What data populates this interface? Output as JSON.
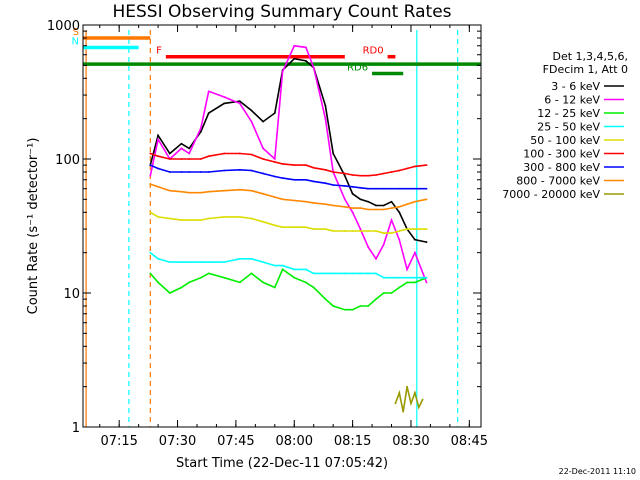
{
  "chart_data": {
    "type": "line",
    "title": "HESSI Observing Summary Count Rates",
    "xlabel": "Start Time (22-Dec-11 07:05:42)",
    "ylabel": "Count Rate (s⁻¹ detector⁻¹)",
    "xscale": "time",
    "yscale": "log",
    "xlim": [
      "07:05:42",
      "08:48:00"
    ],
    "ylim": [
      1,
      1000
    ],
    "x_ticks": [
      "07:15",
      "07:30",
      "07:45",
      "08:00",
      "08:15",
      "08:30",
      "08:45"
    ],
    "y_ticks": [
      "1",
      "10",
      "100",
      "1000"
    ],
    "legend_header": [
      "Det 1,3,4,5,6,",
      "FDecim 1, Att 0"
    ],
    "legend_position": "right, outside plot",
    "series": [
      {
        "name": "3 - 6 keV",
        "color": "#000000",
        "x": [
          "07:23",
          "07:25",
          "07:28",
          "07:31",
          "07:33",
          "07:36",
          "07:38",
          "07:42",
          "07:46",
          "07:49",
          "07:52",
          "07:55",
          "07:57",
          "08:00",
          "08:03",
          "08:05",
          "08:08",
          "08:10",
          "08:13",
          "08:15",
          "08:17",
          "08:19",
          "08:21",
          "08:23",
          "08:25",
          "08:27",
          "08:29",
          "08:31",
          "08:34"
        ],
        "y": [
          90,
          150,
          110,
          130,
          120,
          160,
          220,
          260,
          270,
          230,
          190,
          220,
          460,
          560,
          540,
          480,
          250,
          110,
          75,
          55,
          50,
          48,
          45,
          45,
          48,
          40,
          30,
          25,
          24
        ]
      },
      {
        "name": "6 - 12 keV",
        "color": "#ff00ff",
        "x": [
          "07:23",
          "07:25",
          "07:28",
          "07:31",
          "07:33",
          "07:36",
          "07:38",
          "07:42",
          "07:46",
          "07:49",
          "07:52",
          "07:55",
          "07:57",
          "08:00",
          "08:03",
          "08:05",
          "08:08",
          "08:10",
          "08:13",
          "08:15",
          "08:17",
          "08:19",
          "08:21",
          "08:23",
          "08:25",
          "08:27",
          "08:29",
          "08:31",
          "08:34"
        ],
        "y": [
          75,
          140,
          100,
          120,
          110,
          170,
          320,
          290,
          260,
          190,
          120,
          100,
          450,
          700,
          680,
          480,
          200,
          80,
          50,
          40,
          30,
          22,
          18,
          23,
          35,
          25,
          15,
          20,
          12
        ]
      },
      {
        "name": "12 - 25 keV",
        "color": "#00ee00",
        "x": [
          "07:23",
          "07:25",
          "07:28",
          "07:31",
          "07:33",
          "07:36",
          "07:38",
          "07:42",
          "07:46",
          "07:49",
          "07:52",
          "07:55",
          "07:57",
          "08:00",
          "08:03",
          "08:05",
          "08:08",
          "08:10",
          "08:13",
          "08:15",
          "08:17",
          "08:19",
          "08:21",
          "08:23",
          "08:25",
          "08:27",
          "08:29",
          "08:31",
          "08:34"
        ],
        "y": [
          14,
          12,
          10,
          11,
          12,
          13,
          14,
          13,
          12,
          14,
          12,
          11,
          15,
          13,
          12,
          11,
          9,
          8,
          7.5,
          7.5,
          8,
          8,
          9,
          10,
          10,
          11,
          12,
          12,
          13
        ]
      },
      {
        "name": "25 - 50 keV",
        "color": "#00ffff",
        "x": [
          "07:23",
          "07:25",
          "07:28",
          "07:31",
          "07:33",
          "07:36",
          "07:38",
          "07:42",
          "07:46",
          "07:49",
          "07:52",
          "07:55",
          "07:57",
          "08:00",
          "08:03",
          "08:05",
          "08:08",
          "08:10",
          "08:13",
          "08:15",
          "08:17",
          "08:19",
          "08:21",
          "08:23",
          "08:25",
          "08:27",
          "08:29",
          "08:31",
          "08:34"
        ],
        "y": [
          20,
          18,
          17,
          17,
          17,
          17,
          17,
          17,
          18,
          18,
          17,
          16,
          16,
          15,
          15,
          14,
          14,
          14,
          14,
          14,
          14,
          14,
          14,
          13,
          13,
          13,
          13,
          13,
          13
        ]
      },
      {
        "name": "50 - 100 keV",
        "color": "#dddd00",
        "x": [
          "07:23",
          "07:25",
          "07:28",
          "07:31",
          "07:33",
          "07:36",
          "07:38",
          "07:42",
          "07:46",
          "07:49",
          "07:52",
          "07:55",
          "07:57",
          "08:00",
          "08:03",
          "08:05",
          "08:08",
          "08:10",
          "08:13",
          "08:15",
          "08:17",
          "08:19",
          "08:21",
          "08:23",
          "08:25",
          "08:27",
          "08:29",
          "08:31",
          "08:34"
        ],
        "y": [
          40,
          37,
          36,
          35,
          35,
          35,
          36,
          37,
          37,
          36,
          34,
          32,
          31,
          31,
          31,
          30,
          30,
          29,
          29,
          29,
          29,
          29,
          29,
          28,
          28,
          29,
          30,
          30,
          30
        ]
      },
      {
        "name": "100 - 300 keV",
        "color": "#ff0000",
        "x": [
          "07:23",
          "07:25",
          "07:28",
          "07:31",
          "07:33",
          "07:36",
          "07:38",
          "07:42",
          "07:46",
          "07:49",
          "07:52",
          "07:55",
          "07:57",
          "08:00",
          "08:03",
          "08:05",
          "08:08",
          "08:10",
          "08:13",
          "08:15",
          "08:17",
          "08:19",
          "08:21",
          "08:23",
          "08:25",
          "08:27",
          "08:29",
          "08:31",
          "08:34"
        ],
        "y": [
          110,
          105,
          100,
          100,
          100,
          100,
          105,
          110,
          110,
          108,
          100,
          95,
          92,
          90,
          90,
          86,
          83,
          80,
          78,
          76,
          75,
          75,
          76,
          78,
          80,
          82,
          85,
          88,
          90
        ]
      },
      {
        "name": "300 - 800 keV",
        "color": "#0000ff",
        "x": [
          "07:23",
          "07:25",
          "07:28",
          "07:31",
          "07:33",
          "07:36",
          "07:38",
          "07:42",
          "07:46",
          "07:49",
          "07:52",
          "07:55",
          "07:57",
          "08:00",
          "08:03",
          "08:05",
          "08:08",
          "08:10",
          "08:13",
          "08:15",
          "08:17",
          "08:19",
          "08:21",
          "08:23",
          "08:25",
          "08:27",
          "08:29",
          "08:31",
          "08:34"
        ],
        "y": [
          90,
          85,
          80,
          80,
          80,
          80,
          80,
          82,
          83,
          82,
          78,
          74,
          72,
          70,
          70,
          68,
          66,
          64,
          63,
          62,
          61,
          60,
          60,
          60,
          60,
          60,
          60,
          60,
          60
        ]
      },
      {
        "name": "800 - 7000 keV",
        "color": "#ff8800",
        "x": [
          "07:23",
          "07:25",
          "07:28",
          "07:31",
          "07:33",
          "07:36",
          "07:38",
          "07:42",
          "07:46",
          "07:49",
          "07:52",
          "07:55",
          "07:57",
          "08:00",
          "08:03",
          "08:05",
          "08:08",
          "08:10",
          "08:13",
          "08:15",
          "08:17",
          "08:19",
          "08:21",
          "08:23",
          "08:25",
          "08:27",
          "08:29",
          "08:31",
          "08:34"
        ],
        "y": [
          65,
          62,
          58,
          57,
          56,
          56,
          57,
          58,
          59,
          58,
          55,
          52,
          50,
          49,
          48,
          47,
          46,
          45,
          44,
          43,
          43,
          42,
          42,
          42,
          43,
          44,
          46,
          48,
          50
        ]
      },
      {
        "name": "7000 - 20000 keV",
        "color": "#999900",
        "x": [
          "08:26",
          "08:27",
          "08:28",
          "08:29",
          "08:30",
          "08:31",
          "08:32",
          "08:33"
        ],
        "y": [
          1.5,
          1.8,
          1.3,
          2.0,
          1.5,
          1.8,
          1.4,
          1.6
        ]
      }
    ],
    "flag_bars": [
      {
        "label": "S",
        "color": "#ff7700",
        "x_start": "07:05:42",
        "x_end": "07:23",
        "y": 800
      },
      {
        "label": "N",
        "color": "#00ffff",
        "x_start": "07:05:42",
        "x_end": "07:20",
        "y": 680
      },
      {
        "label": "F",
        "color": "#ff0000",
        "x_start": "07:27",
        "x_end": "08:13",
        "y": 580
      },
      {
        "label": "RD0",
        "color": "#ff0000",
        "x_start": "08:24",
        "x_end": "08:26",
        "y": 580
      },
      {
        "label": "RD6",
        "color": "#008800",
        "x_start": "08:20",
        "x_end": "08:28",
        "y": 435
      },
      {
        "label": "",
        "color": "#008800",
        "x_start": "07:05:42",
        "x_end": "08:48",
        "y": 510
      }
    ],
    "vertical_markers": [
      {
        "x": "07:06:30",
        "color": "#ff7700",
        "style": "solid"
      },
      {
        "x": "07:17:30",
        "color": "#00ffff",
        "style": "dashed"
      },
      {
        "x": "07:23:00",
        "color": "#ff7700",
        "style": "dashed"
      },
      {
        "x": "08:31:30",
        "color": "#00ffff",
        "style": "solid"
      },
      {
        "x": "08:42:00",
        "color": "#00ffff",
        "style": "dashed"
      }
    ]
  },
  "footer": {
    "timestamp": "22-Dec-2011 11:10"
  }
}
